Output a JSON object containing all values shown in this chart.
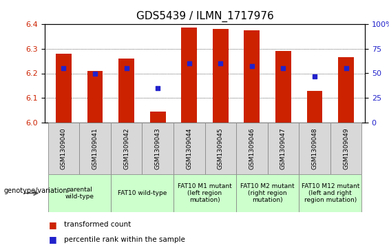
{
  "title": "GDS5439 / ILMN_1717976",
  "samples": [
    "GSM1309040",
    "GSM1309041",
    "GSM1309042",
    "GSM1309043",
    "GSM1309044",
    "GSM1309045",
    "GSM1309046",
    "GSM1309047",
    "GSM1309048",
    "GSM1309049"
  ],
  "transformed_count": [
    6.28,
    6.21,
    6.26,
    6.045,
    6.385,
    6.38,
    6.375,
    6.29,
    6.13,
    6.265
  ],
  "percentile_rank": [
    55,
    50,
    55,
    35,
    60,
    60,
    57,
    55,
    47,
    55
  ],
  "ylim_left": [
    6.0,
    6.4
  ],
  "ylim_right": [
    0,
    100
  ],
  "yticks_left": [
    6.0,
    6.1,
    6.2,
    6.3,
    6.4
  ],
  "yticks_right": [
    0,
    25,
    50,
    75,
    100
  ],
  "bar_color": "#cc2200",
  "dot_color": "#2222cc",
  "bar_width": 0.5,
  "group_configs": [
    {
      "indices": [
        0,
        1
      ],
      "label": "parental\nwild-type",
      "color": "#ccffcc"
    },
    {
      "indices": [
        2,
        3
      ],
      "label": "FAT10 wild-type",
      "color": "#ccffcc"
    },
    {
      "indices": [
        4,
        5
      ],
      "label": "FAT10 M1 mutant\n(left region\nmutation)",
      "color": "#ccffcc"
    },
    {
      "indices": [
        6,
        7
      ],
      "label": "FAT10 M2 mutant\n(right region\nmutation)",
      "color": "#ccffcc"
    },
    {
      "indices": [
        8,
        9
      ],
      "label": "FAT10 M12 mutant\n(left and right\nregion mutation)",
      "color": "#ccffcc"
    }
  ],
  "legend_labels": [
    "transformed count",
    "percentile rank within the sample"
  ],
  "legend_colors": [
    "#cc2200",
    "#2222cc"
  ],
  "grid_linestyle": ":",
  "grid_color": "#000000",
  "title_fontsize": 11,
  "tick_fontsize": 8,
  "sample_fontsize": 6.5,
  "geno_fontsize": 6.5,
  "legend_fontsize": 7.5
}
